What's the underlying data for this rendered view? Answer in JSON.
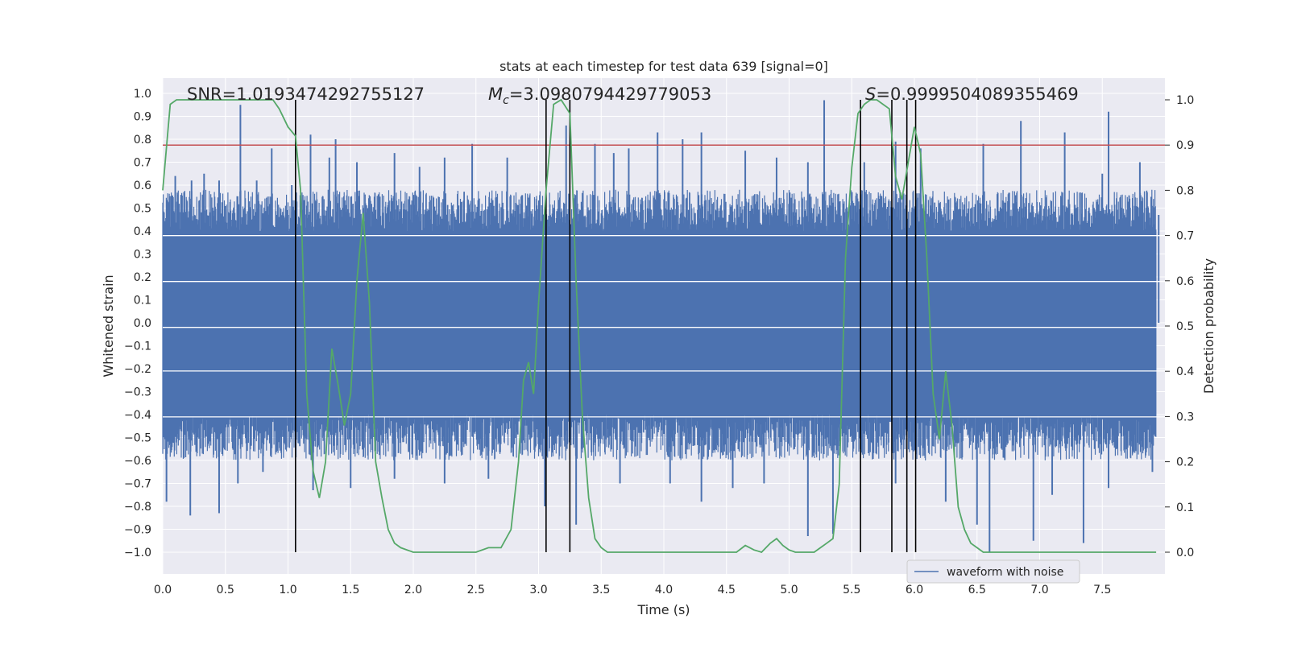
{
  "chart_data": {
    "type": "line",
    "title": "stats at each timestep for test data 639 [signal=0]",
    "xlabel": "Time (s)",
    "ylabel_left": "Whitened strain",
    "ylabel_right": "Detection probability",
    "xlim": [
      0.0,
      8.0
    ],
    "ylim_left": [
      -1.1,
      1.05
    ],
    "ylim_right": [
      -0.05,
      1.03
    ],
    "x_ticks": [
      "0.0",
      "0.5",
      "1.0",
      "1.5",
      "2.0",
      "2.5",
      "3.0",
      "3.5",
      "4.0",
      "4.5",
      "5.0",
      "5.5",
      "6.0",
      "6.5",
      "7.0",
      "7.5"
    ],
    "left_ticks": [
      "−1.0",
      "−0.9",
      "−0.8",
      "−0.7",
      "−0.6",
      "−0.5",
      "−0.4",
      "−0.3",
      "−0.2",
      "−0.1",
      "0.0",
      "0.1",
      "0.2",
      "0.3",
      "0.4",
      "0.5",
      "0.6",
      "0.7",
      "0.8",
      "0.9",
      "1.0"
    ],
    "right_ticks": [
      "0.0",
      "0.1",
      "0.2",
      "0.3",
      "0.4",
      "0.5",
      "0.6",
      "0.7",
      "0.8",
      "0.9",
      "1.0"
    ],
    "grid": true,
    "legend": {
      "placement": "lower-right",
      "entries": [
        {
          "name": "waveform with noise",
          "color": "#4c72b0"
        }
      ]
    },
    "annotations": {
      "snr": "SNR=1.0193474292755127",
      "mc_symbol": "M",
      "mc_sub": "c",
      "mc_value": "=3.0980794429779053",
      "s_symbol": "S",
      "s_value": "=0.9999504089355469"
    },
    "threshold": {
      "value": 0.9,
      "axis": "right",
      "color": "#c44e52"
    },
    "vertical_lines": [
      1.06,
      3.06,
      3.25,
      5.57,
      5.82,
      5.94,
      6.01
    ],
    "waveform": {
      "name": "waveform with noise",
      "color": "#4c72b0",
      "core_amplitude": 0.4,
      "peaks_positive": [
        {
          "x": 0.05,
          "y": 0.47
        },
        {
          "x": 0.1,
          "y": 0.64
        },
        {
          "x": 0.23,
          "y": 0.62
        },
        {
          "x": 0.33,
          "y": 0.65
        },
        {
          "x": 0.45,
          "y": 0.62
        },
        {
          "x": 0.62,
          "y": 0.95
        },
        {
          "x": 0.75,
          "y": 0.62
        },
        {
          "x": 0.87,
          "y": 0.76
        },
        {
          "x": 1.03,
          "y": 0.6
        },
        {
          "x": 1.18,
          "y": 0.82
        },
        {
          "x": 1.33,
          "y": 0.72
        },
        {
          "x": 1.38,
          "y": 0.8
        },
        {
          "x": 1.55,
          "y": 0.7
        },
        {
          "x": 1.85,
          "y": 0.74
        },
        {
          "x": 2.05,
          "y": 0.68
        },
        {
          "x": 2.25,
          "y": 0.72
        },
        {
          "x": 2.47,
          "y": 0.78
        },
        {
          "x": 2.75,
          "y": 0.72
        },
        {
          "x": 3.22,
          "y": 0.86
        },
        {
          "x": 3.45,
          "y": 0.78
        },
        {
          "x": 3.6,
          "y": 0.74
        },
        {
          "x": 3.72,
          "y": 0.76
        },
        {
          "x": 3.95,
          "y": 0.83
        },
        {
          "x": 4.15,
          "y": 0.8
        },
        {
          "x": 4.3,
          "y": 0.83
        },
        {
          "x": 4.65,
          "y": 0.75
        },
        {
          "x": 4.9,
          "y": 0.72
        },
        {
          "x": 5.15,
          "y": 0.7
        },
        {
          "x": 5.28,
          "y": 0.97
        },
        {
          "x": 5.6,
          "y": 0.7
        },
        {
          "x": 5.85,
          "y": 0.79
        },
        {
          "x": 6.05,
          "y": 0.76
        },
        {
          "x": 6.55,
          "y": 0.78
        },
        {
          "x": 6.85,
          "y": 0.88
        },
        {
          "x": 7.2,
          "y": 0.83
        },
        {
          "x": 7.5,
          "y": 0.65
        },
        {
          "x": 7.55,
          "y": 0.92
        },
        {
          "x": 7.8,
          "y": 0.7
        },
        {
          "x": 7.95,
          "y": 0.47
        }
      ],
      "peaks_negative": [
        {
          "x": 0.03,
          "y": -0.78
        },
        {
          "x": 0.22,
          "y": -0.84
        },
        {
          "x": 0.45,
          "y": -0.83
        },
        {
          "x": 0.6,
          "y": -0.7
        },
        {
          "x": 0.8,
          "y": -0.65
        },
        {
          "x": 1.2,
          "y": -0.73
        },
        {
          "x": 1.5,
          "y": -0.72
        },
        {
          "x": 1.85,
          "y": -0.68
        },
        {
          "x": 2.25,
          "y": -0.7
        },
        {
          "x": 2.6,
          "y": -0.68
        },
        {
          "x": 3.05,
          "y": -0.8
        },
        {
          "x": 3.3,
          "y": -0.88
        },
        {
          "x": 3.65,
          "y": -0.7
        },
        {
          "x": 4.05,
          "y": -0.7
        },
        {
          "x": 4.3,
          "y": -0.78
        },
        {
          "x": 4.55,
          "y": -0.72
        },
        {
          "x": 4.8,
          "y": -0.7
        },
        {
          "x": 5.15,
          "y": -0.93
        },
        {
          "x": 5.35,
          "y": -0.92
        },
        {
          "x": 5.85,
          "y": -0.7
        },
        {
          "x": 6.25,
          "y": -0.78
        },
        {
          "x": 6.5,
          "y": -0.88
        },
        {
          "x": 6.6,
          "y": -1.0
        },
        {
          "x": 6.95,
          "y": -0.95
        },
        {
          "x": 7.1,
          "y": -0.75
        },
        {
          "x": 7.35,
          "y": -0.96
        },
        {
          "x": 7.55,
          "y": -0.72
        },
        {
          "x": 7.9,
          "y": -0.65
        }
      ]
    },
    "probability": {
      "color": "#55a868",
      "x": [
        0.0,
        0.06,
        0.11,
        0.2,
        0.3,
        0.4,
        0.5,
        0.6,
        0.7,
        0.8,
        0.88,
        0.93,
        1.0,
        1.06,
        1.1,
        1.15,
        1.2,
        1.25,
        1.3,
        1.35,
        1.4,
        1.45,
        1.5,
        1.55,
        1.6,
        1.65,
        1.7,
        1.75,
        1.8,
        1.85,
        1.9,
        2.0,
        2.1,
        2.2,
        2.3,
        2.4,
        2.5,
        2.6,
        2.7,
        2.78,
        2.84,
        2.88,
        2.92,
        2.96,
        3.0,
        3.06,
        3.12,
        3.18,
        3.25,
        3.3,
        3.35,
        3.4,
        3.45,
        3.5,
        3.55,
        3.6,
        3.7,
        3.8,
        3.9,
        4.0,
        4.1,
        4.2,
        4.3,
        4.4,
        4.5,
        4.58,
        4.65,
        4.72,
        4.78,
        4.85,
        4.9,
        4.95,
        5.0,
        5.05,
        5.1,
        5.15,
        5.2,
        5.25,
        5.3,
        5.35,
        5.4,
        5.45,
        5.5,
        5.55,
        5.6,
        5.65,
        5.7,
        5.75,
        5.8,
        5.85,
        5.9,
        5.95,
        6.0,
        6.05,
        6.1,
        6.15,
        6.2,
        6.25,
        6.3,
        6.35,
        6.4,
        6.45,
        6.5,
        6.55,
        6.6,
        6.7,
        6.8,
        6.9,
        7.0,
        7.1,
        7.2,
        7.3,
        7.4,
        7.5,
        7.6,
        7.7,
        7.8,
        7.93
      ],
      "y": [
        0.8,
        0.99,
        1.0,
        1.0,
        1.0,
        1.0,
        1.0,
        1.0,
        1.0,
        1.0,
        1.0,
        0.98,
        0.94,
        0.92,
        0.8,
        0.35,
        0.18,
        0.12,
        0.2,
        0.45,
        0.37,
        0.28,
        0.35,
        0.6,
        0.75,
        0.55,
        0.2,
        0.12,
        0.05,
        0.02,
        0.01,
        0.0,
        0.0,
        0.0,
        0.0,
        0.0,
        0.0,
        0.01,
        0.01,
        0.05,
        0.2,
        0.38,
        0.42,
        0.35,
        0.55,
        0.8,
        0.99,
        1.0,
        0.97,
        0.6,
        0.3,
        0.12,
        0.03,
        0.01,
        0.0,
        0.0,
        0.0,
        0.0,
        0.0,
        0.0,
        0.0,
        0.0,
        0.0,
        0.0,
        0.0,
        0.0,
        0.015,
        0.005,
        0.0,
        0.02,
        0.03,
        0.015,
        0.005,
        0.0,
        0.0,
        0.0,
        0.0,
        0.01,
        0.02,
        0.03,
        0.15,
        0.65,
        0.85,
        0.97,
        0.99,
        1.0,
        1.0,
        0.99,
        0.98,
        0.83,
        0.78,
        0.86,
        0.94,
        0.88,
        0.65,
        0.35,
        0.25,
        0.4,
        0.28,
        0.1,
        0.05,
        0.02,
        0.01,
        0.0,
        0.0,
        0.0,
        0.0,
        0.0,
        0.0,
        0.0,
        0.0,
        0.0,
        0.0,
        0.0,
        0.0,
        0.0,
        0.0,
        0.0
      ]
    }
  }
}
